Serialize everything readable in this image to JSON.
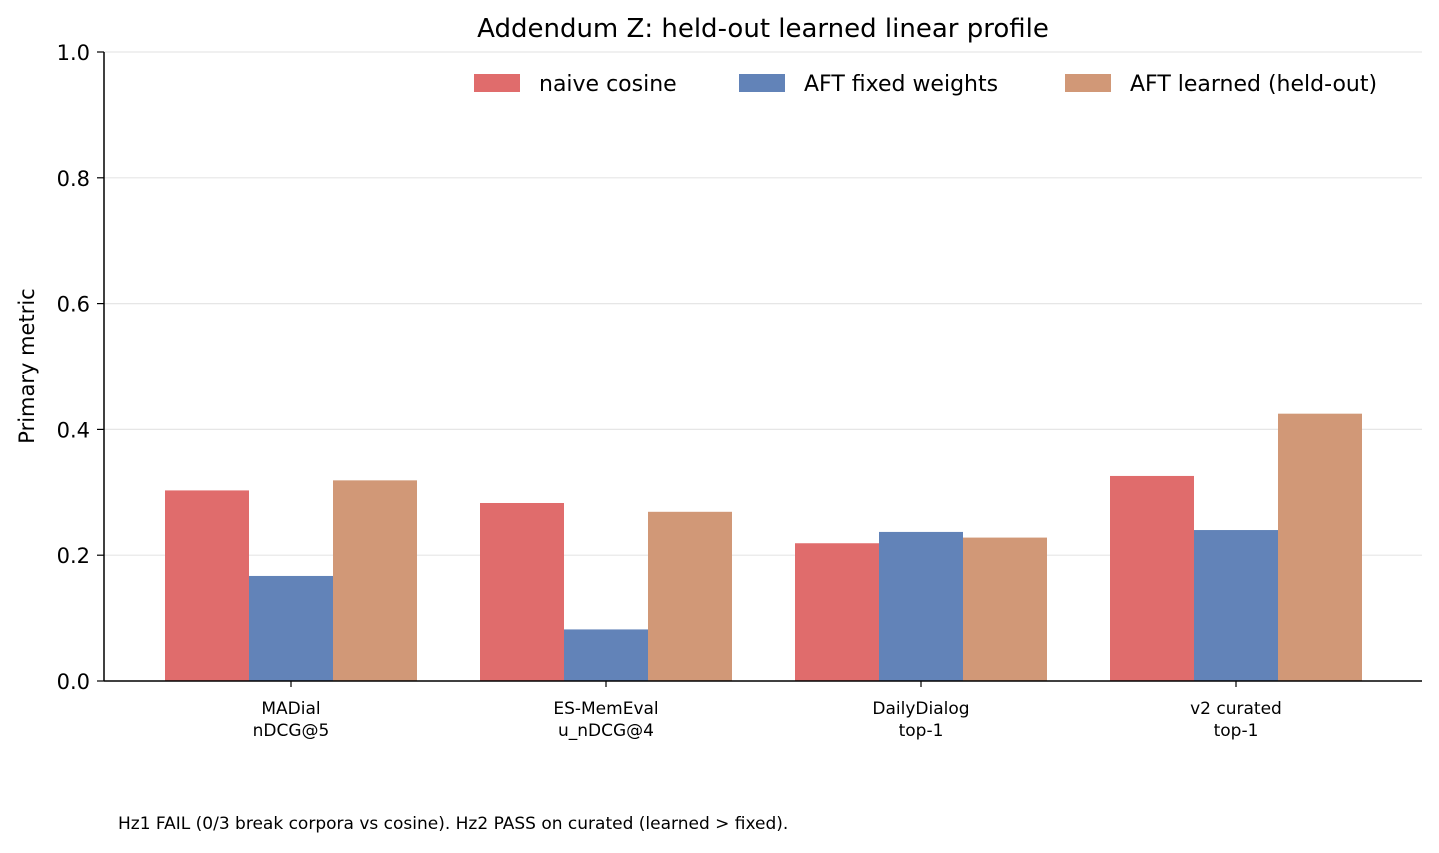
{
  "chart_data": {
    "type": "bar",
    "title": "Addendum Z: held-out learned linear profile",
    "xlabel": "",
    "ylabel": "Primary metric",
    "ylim": [
      0,
      1.0
    ],
    "yticks": [
      "0.0",
      "0.2",
      "0.4",
      "0.6",
      "0.8",
      "1.0"
    ],
    "grid": "horizontal",
    "legend_position": "top-right",
    "categories": [
      [
        "MADial",
        "nDCG@5"
      ],
      [
        "ES-MemEval",
        "u_nDCG@4"
      ],
      [
        "DailyDialog",
        "top-1"
      ],
      [
        "v2 curated",
        "top-1"
      ]
    ],
    "series": [
      {
        "name": "naive cosine",
        "color": "#e06c6c",
        "values": [
          0.303,
          0.283,
          0.219,
          0.326
        ]
      },
      {
        "name": "AFT fixed weights",
        "color": "#6283b8",
        "values": [
          0.167,
          0.082,
          0.237,
          0.24
        ]
      },
      {
        "name": "AFT learned (held-out)",
        "color": "#d19877",
        "values": [
          0.319,
          0.269,
          0.228,
          0.425
        ]
      }
    ]
  },
  "footnote": "Hz1 FAIL (0/3 break corpora vs cosine). Hz2 PASS on curated (learned > fixed)."
}
